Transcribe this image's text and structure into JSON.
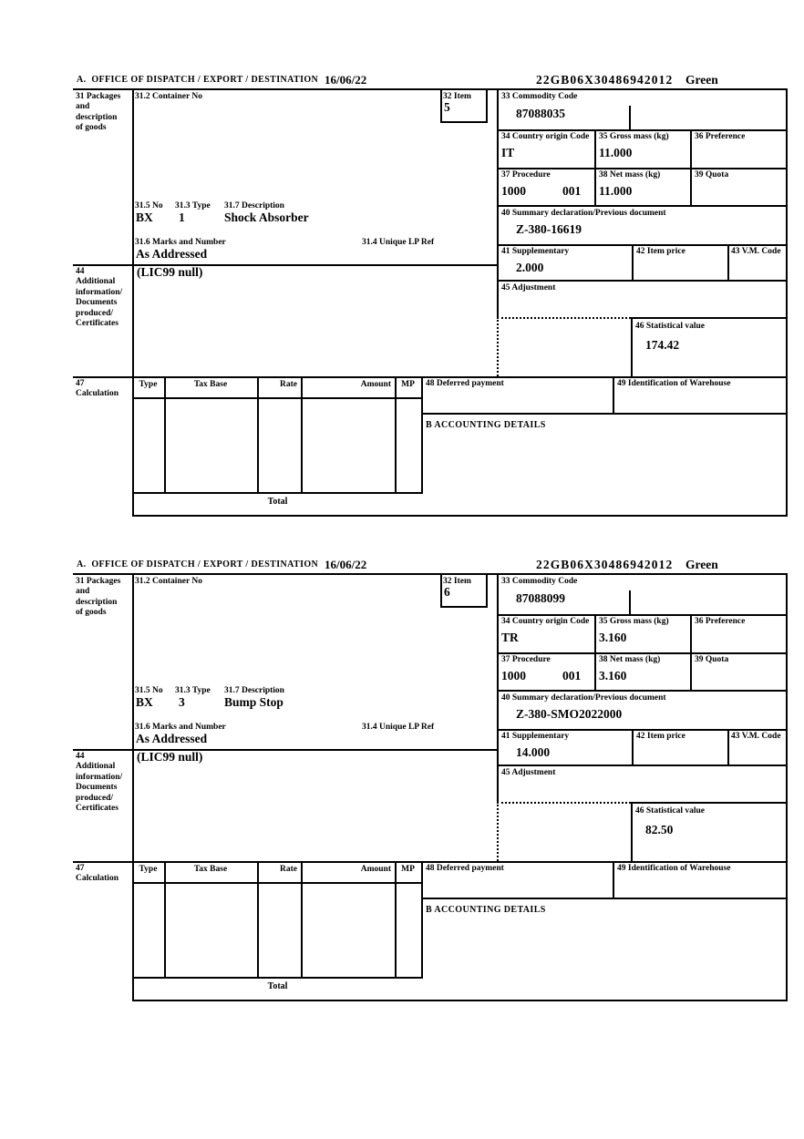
{
  "sections": [
    {
      "header": {
        "office_label": "A.  OFFICE OF DISPATCH / EXPORT / DESTINATION",
        "date": "16/06/22",
        "mrn": "22GB06X30486942012",
        "routing": "Green"
      },
      "box31": {
        "label": "31 Packages\nand\ndescription\nof goods",
        "container_label": "31.2 Container No",
        "no_label": "31.5 No",
        "no_value": "BX",
        "type_label": "31.3 Type",
        "type_value": "1",
        "desc_label": "31.7 Description",
        "desc_value": "Shock Absorber",
        "marks_label": "31.6 Marks and Number",
        "marks_value": "As Addressed",
        "lp_label": "31.4 Unique LP Ref"
      },
      "box32": {
        "label": "32 Item",
        "value": "5"
      },
      "box33": {
        "label": "33 Commodity Code",
        "value": "87088035"
      },
      "box34": {
        "label": "34 Country origin Code",
        "value": "IT"
      },
      "box35": {
        "label": "35 Gross mass (kg)",
        "value": "11.000"
      },
      "box36": {
        "label": "36 Preference"
      },
      "box37": {
        "label": "37 Procedure",
        "value": "1000",
        "ext": "001"
      },
      "box38": {
        "label": "38 Net mass (kg)",
        "value": "11.000"
      },
      "box39": {
        "label": "39 Quota"
      },
      "box40": {
        "label": "40 Summary declaration/Previous document",
        "value": "Z-380-16619"
      },
      "box41": {
        "label": "41 Supplementary",
        "value": "2.000"
      },
      "box42": {
        "label": "42 Item price"
      },
      "box43": {
        "label": "43 V.M. Code"
      },
      "box44": {
        "label": "44\nAdditional\ninformation/\nDocuments\nproduced/\nCertificates",
        "value": "(LIC99 null)"
      },
      "box45": {
        "label": "45 Adjustment"
      },
      "box46": {
        "label": "46 Statistical value",
        "value": "174.42"
      },
      "box47": {
        "label": "47\nCalculation",
        "columns": [
          "Type",
          "Tax Base",
          "Rate",
          "Amount",
          "MP"
        ],
        "total_label": "Total"
      },
      "box48": {
        "label": "48 Deferred payment"
      },
      "box49": {
        "label": "49 Identification of Warehouse"
      },
      "accounting_label": "B ACCOUNTING DETAILS"
    },
    {
      "header": {
        "office_label": "A.  OFFICE OF DISPATCH / EXPORT / DESTINATION",
        "date": "16/06/22",
        "mrn": "22GB06X30486942012",
        "routing": "Green"
      },
      "box31": {
        "label": "31 Packages\nand\ndescription\nof goods",
        "container_label": "31.2 Container No",
        "no_label": "31.5 No",
        "no_value": "BX",
        "type_label": "31.3 Type",
        "type_value": "3",
        "desc_label": "31.7 Description",
        "desc_value": "Bump Stop",
        "marks_label": "31.6 Marks and Number",
        "marks_value": "As Addressed",
        "lp_label": "31.4 Unique LP Ref"
      },
      "box32": {
        "label": "32 Item",
        "value": "6"
      },
      "box33": {
        "label": "33 Commodity Code",
        "value": "87088099"
      },
      "box34": {
        "label": "34 Country origin Code",
        "value": "TR"
      },
      "box35": {
        "label": "35 Gross mass (kg)",
        "value": "3.160"
      },
      "box36": {
        "label": "36 Preference"
      },
      "box37": {
        "label": "37 Procedure",
        "value": "1000",
        "ext": "001"
      },
      "box38": {
        "label": "38 Net mass (kg)",
        "value": "3.160"
      },
      "box39": {
        "label": "39 Quota"
      },
      "box40": {
        "label": "40 Summary declaration/Previous document",
        "value": "Z-380-SMO2022000"
      },
      "box41": {
        "label": "41 Supplementary",
        "value": "14.000"
      },
      "box42": {
        "label": "42 Item price"
      },
      "box43": {
        "label": "43 V.M. Code"
      },
      "box44": {
        "label": "44\nAdditional\ninformation/\nDocuments\nproduced/\nCertificates",
        "value": "(LIC99 null)"
      },
      "box45": {
        "label": "45 Adjustment"
      },
      "box46": {
        "label": "46 Statistical value",
        "value": "82.50"
      },
      "box47": {
        "label": "47\nCalculation",
        "columns": [
          "Type",
          "Tax Base",
          "Rate",
          "Amount",
          "MP"
        ],
        "total_label": "Total"
      },
      "box48": {
        "label": "48 Deferred payment"
      },
      "box49": {
        "label": "49 Identification of Warehouse"
      },
      "accounting_label": "B ACCOUNTING DETAILS"
    }
  ]
}
